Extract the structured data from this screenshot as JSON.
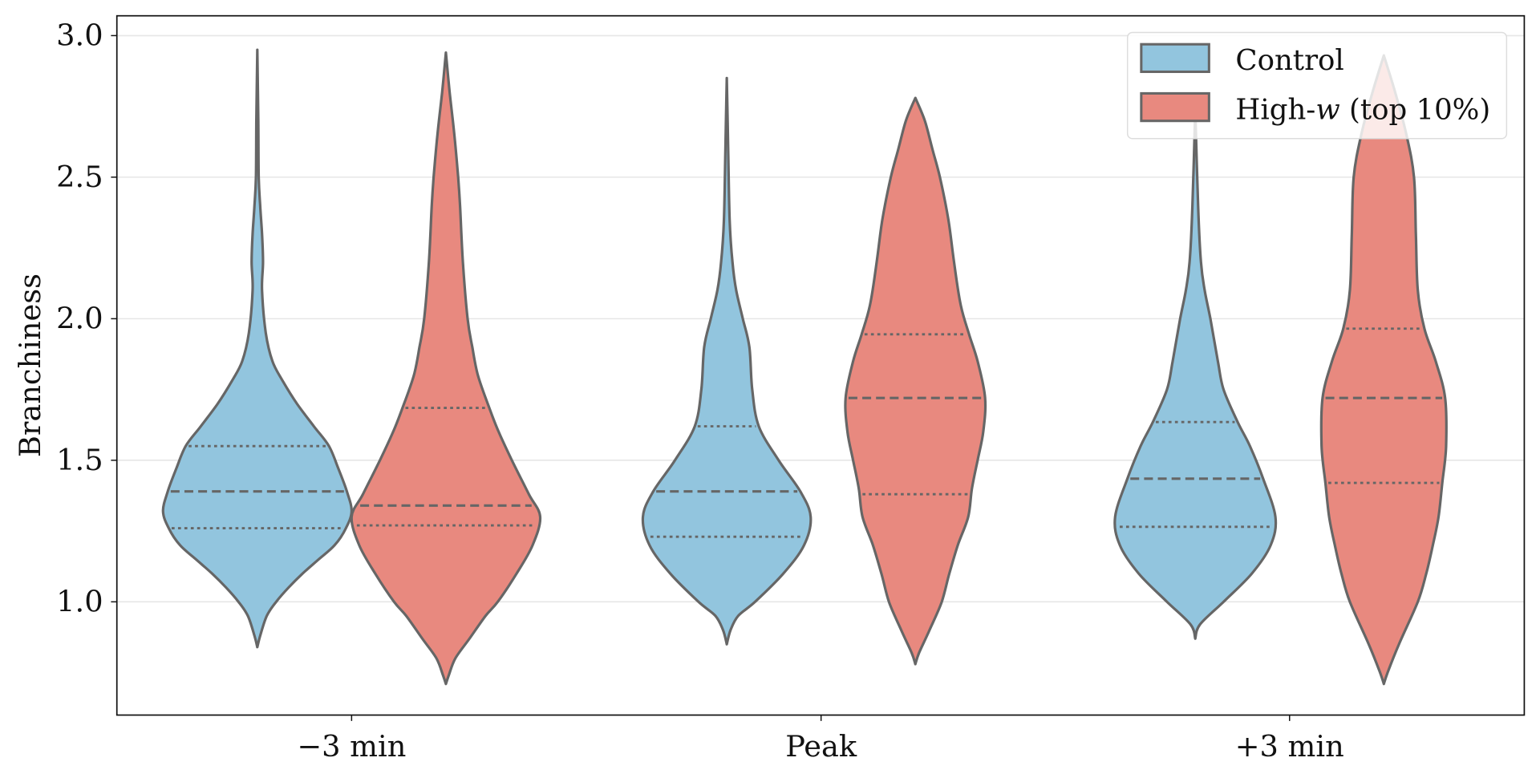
{
  "chart_data": {
    "type": "violin",
    "title": "",
    "xlabel": "",
    "ylabel": "Branchiness",
    "ylim": [
      0.6,
      3.07
    ],
    "yticks": [
      "1.0",
      "1.5",
      "2.0",
      "2.5",
      "3.0"
    ],
    "categories": [
      "−3 min",
      "Peak",
      "+3 min"
    ],
    "grid": "horizontal",
    "legend_position": "top-right",
    "outline_color": "#666666",
    "series": [
      {
        "name": "Control",
        "color": "#92c5de",
        "violins": [
          {
            "min": 0.84,
            "max": 2.95,
            "q1": 1.26,
            "median": 1.39,
            "q3": 1.55,
            "density": [
              [
                0.84,
                0
              ],
              [
                0.88,
                0.03
              ],
              [
                0.95,
                0.1
              ],
              [
                1.0,
                0.2
              ],
              [
                1.05,
                0.33
              ],
              [
                1.1,
                0.48
              ],
              [
                1.15,
                0.65
              ],
              [
                1.2,
                0.82
              ],
              [
                1.26,
                0.94
              ],
              [
                1.32,
                1.0
              ],
              [
                1.39,
                0.95
              ],
              [
                1.47,
                0.86
              ],
              [
                1.55,
                0.76
              ],
              [
                1.62,
                0.6
              ],
              [
                1.7,
                0.42
              ],
              [
                1.78,
                0.27
              ],
              [
                1.85,
                0.16
              ],
              [
                1.95,
                0.09
              ],
              [
                2.1,
                0.05
              ],
              [
                2.2,
                0.06
              ],
              [
                2.3,
                0.05
              ],
              [
                2.4,
                0.03
              ],
              [
                2.5,
                0.015
              ],
              [
                2.7,
                0.01
              ],
              [
                2.95,
                0
              ]
            ]
          },
          {
            "min": 0.85,
            "max": 2.85,
            "q1": 1.23,
            "median": 1.39,
            "q3": 1.62,
            "density": [
              [
                0.85,
                0
              ],
              [
                0.9,
                0.04
              ],
              [
                0.95,
                0.12
              ],
              [
                1.0,
                0.3
              ],
              [
                1.1,
                0.6
              ],
              [
                1.2,
                0.82
              ],
              [
                1.3,
                0.89
              ],
              [
                1.39,
                0.78
              ],
              [
                1.5,
                0.55
              ],
              [
                1.62,
                0.34
              ],
              [
                1.75,
                0.27
              ],
              [
                1.9,
                0.24
              ],
              [
                2.0,
                0.17
              ],
              [
                2.1,
                0.1
              ],
              [
                2.2,
                0.06
              ],
              [
                2.35,
                0.03
              ],
              [
                2.6,
                0.015
              ],
              [
                2.85,
                0
              ]
            ]
          },
          {
            "min": 0.87,
            "max": 2.74,
            "q1": 1.265,
            "median": 1.435,
            "q3": 1.635,
            "density": [
              [
                0.87,
                0
              ],
              [
                0.92,
                0.05
              ],
              [
                1.0,
                0.3
              ],
              [
                1.1,
                0.6
              ],
              [
                1.2,
                0.8
              ],
              [
                1.3,
                0.85
              ],
              [
                1.435,
                0.72
              ],
              [
                1.55,
                0.58
              ],
              [
                1.635,
                0.45
              ],
              [
                1.75,
                0.3
              ],
              [
                1.85,
                0.24
              ],
              [
                2.0,
                0.16
              ],
              [
                2.1,
                0.1
              ],
              [
                2.2,
                0.06
              ],
              [
                2.4,
                0.03
              ],
              [
                2.74,
                0
              ]
            ]
          }
        ]
      },
      {
        "name": "High-w (top 10%)",
        "color": "#e8897f",
        "violins": [
          {
            "min": 0.71,
            "max": 2.94,
            "q1": 1.27,
            "median": 1.34,
            "q3": 1.685,
            "density": [
              [
                0.71,
                0
              ],
              [
                0.74,
                0.03
              ],
              [
                0.8,
                0.1
              ],
              [
                0.87,
                0.25
              ],
              [
                0.95,
                0.42
              ],
              [
                1.0,
                0.55
              ],
              [
                1.1,
                0.75
              ],
              [
                1.2,
                0.92
              ],
              [
                1.3,
                1.0
              ],
              [
                1.38,
                0.88
              ],
              [
                1.5,
                0.7
              ],
              [
                1.6,
                0.56
              ],
              [
                1.685,
                0.46
              ],
              [
                1.8,
                0.34
              ],
              [
                1.9,
                0.28
              ],
              [
                2.0,
                0.23
              ],
              [
                2.2,
                0.18
              ],
              [
                2.4,
                0.15
              ],
              [
                2.5,
                0.13
              ],
              [
                2.65,
                0.09
              ],
              [
                2.8,
                0.04
              ],
              [
                2.94,
                0
              ]
            ]
          },
          {
            "min": 0.78,
            "max": 2.78,
            "q1": 1.38,
            "median": 1.72,
            "q3": 1.945,
            "density": [
              [
                0.78,
                0
              ],
              [
                0.82,
                0.04
              ],
              [
                0.9,
                0.15
              ],
              [
                1.0,
                0.28
              ],
              [
                1.1,
                0.36
              ],
              [
                1.2,
                0.45
              ],
              [
                1.3,
                0.56
              ],
              [
                1.4,
                0.6
              ],
              [
                1.5,
                0.66
              ],
              [
                1.6,
                0.72
              ],
              [
                1.72,
                0.74
              ],
              [
                1.85,
                0.66
              ],
              [
                1.945,
                0.57
              ],
              [
                2.05,
                0.48
              ],
              [
                2.2,
                0.41
              ],
              [
                2.35,
                0.35
              ],
              [
                2.5,
                0.26
              ],
              [
                2.6,
                0.18
              ],
              [
                2.7,
                0.1
              ],
              [
                2.78,
                0
              ]
            ]
          },
          {
            "min": 0.71,
            "max": 2.93,
            "q1": 1.42,
            "median": 1.72,
            "q3": 1.965,
            "density": [
              [
                0.71,
                0
              ],
              [
                0.75,
                0.04
              ],
              [
                0.85,
                0.16
              ],
              [
                1.0,
                0.36
              ],
              [
                1.1,
                0.45
              ],
              [
                1.2,
                0.52
              ],
              [
                1.3,
                0.58
              ],
              [
                1.42,
                0.62
              ],
              [
                1.55,
                0.66
              ],
              [
                1.72,
                0.65
              ],
              [
                1.85,
                0.55
              ],
              [
                1.965,
                0.43
              ],
              [
                2.1,
                0.36
              ],
              [
                2.3,
                0.34
              ],
              [
                2.5,
                0.32
              ],
              [
                2.65,
                0.24
              ],
              [
                2.8,
                0.12
              ],
              [
                2.93,
                0
              ]
            ]
          }
        ]
      }
    ]
  },
  "legend": {
    "control_label": "Control",
    "high_prefix": "High-",
    "high_var": "w",
    "high_suffix": " (top 10%)"
  }
}
